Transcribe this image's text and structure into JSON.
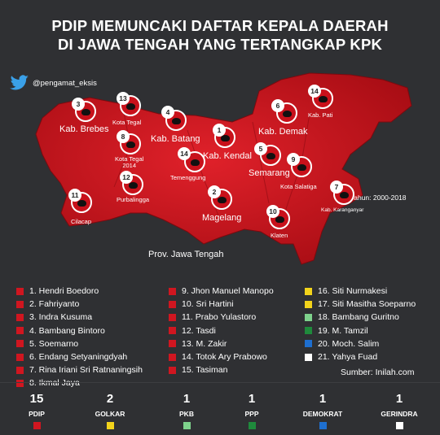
{
  "title_line1": "PDIP MEMUNCAKI DAFTAR KEPALA DAERAH",
  "title_line2": "DI JAWA TENGAH YANG TERTANGKAP KPK",
  "twitter_handle": "@pengamat_eksis",
  "map": {
    "province_label": "Prov. Jawa Tengah",
    "years_note": "Tahun: 2000-2018",
    "region_labels": {
      "brebes": "Kab. Brebes",
      "kota_tegal": "Kota Tegal",
      "kota_tegal_2014": "Kota Tegal\n2014",
      "purbalingga": "Purbalingga",
      "cilacap": "Cilacap",
      "batang": "Kab. Batang",
      "temenggung": "Temenggung",
      "kendal": "Kab. Kendal",
      "magelang": "Magelang",
      "demak": "Kab. Demak",
      "semarang": "Semarang",
      "salatiga": "Kota Salatiga",
      "klaten": "Klaten",
      "pati": "Kab. Pati",
      "karanganyar": "Kab. Karanganyar"
    },
    "marker_numbers": {
      "brebes": "3",
      "kota_tegal": "13",
      "kota_tegal_2014": "8",
      "purbalingga": "12",
      "cilacap": "11",
      "batang": "4",
      "temenggung": "14",
      "kendal": "1",
      "magelang": "2",
      "demak": "6",
      "semarang": "5",
      "salatiga": "9",
      "klaten": "10",
      "pati": "14",
      "karanganyar": "7"
    }
  },
  "legend_col1": [
    "1. Hendri Boedoro",
    "2. Fahriyanto",
    "3. Indra Kusuma",
    "4. Bambang Bintoro",
    "5. Soemarno",
    "6. Endang Setyaningdyah",
    "7. Rina Iriani Sri Ratnaningsih",
    "8. Ikmal Jaya"
  ],
  "legend_col2": [
    "9. Jhon Manuel Manopo",
    "10. Sri Hartini",
    "11. Prabo Yulastoro",
    "12. Tasdi",
    "13. M. Zakir",
    "14. Totok Ary Prabowo",
    "15. Tasiman"
  ],
  "legend_col3": [
    {
      "text": "16. Siti Nurmakesi",
      "color": "#f2d31b"
    },
    {
      "text": "17. Siti Masitha Soeparno",
      "color": "#f2d31b"
    },
    {
      "text": "18. Bambang Guritno",
      "color": "#7ed28c"
    },
    {
      "text": "19. M. Tamzil",
      "color": "#1f8a3c"
    },
    {
      "text": "20. Moch. Salim",
      "color": "#1e6fd0"
    },
    {
      "text": "21. Yahya Fuad",
      "color": "#ffffff"
    }
  ],
  "colors": {
    "pdip": "#d01620",
    "background": "#2f3033"
  },
  "source": "Sumber: Inilah.com",
  "parties": [
    {
      "count": "15",
      "name": "PDIP",
      "color": "#d01620"
    },
    {
      "count": "2",
      "name": "GOLKAR",
      "color": "#f2d31b"
    },
    {
      "count": "1",
      "name": "PKB",
      "color": "#7ed28c"
    },
    {
      "count": "1",
      "name": "PPP",
      "color": "#1f8a3c"
    },
    {
      "count": "1",
      "name": "DEMOKRAT",
      "color": "#1e6fd0"
    },
    {
      "count": "1",
      "name": "GERINDRA",
      "color": "#ffffff"
    }
  ]
}
